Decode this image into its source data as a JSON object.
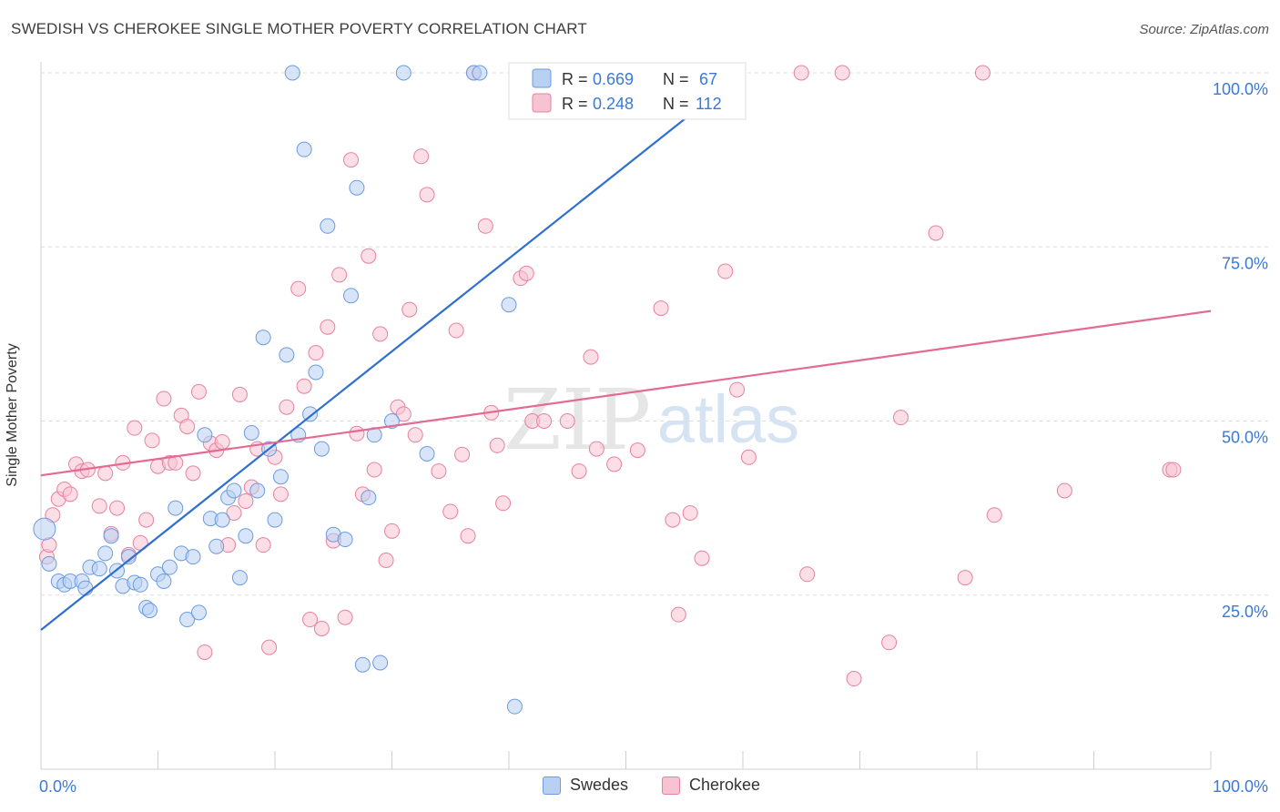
{
  "header": {
    "title": "SWEDISH VS CHEROKEE SINGLE MOTHER POVERTY CORRELATION CHART",
    "source": "Source: ZipAtlas.com"
  },
  "watermark": {
    "zip": "ZIP",
    "atlas": "atlas"
  },
  "chart_data": {
    "type": "scatter",
    "xlabel": "",
    "ylabel": "Single Mother Poverty",
    "xlim": [
      0,
      100
    ],
    "ylim": [
      0,
      100
    ],
    "x_tick_labels": [
      "0.0%",
      "100.0%"
    ],
    "y_ticks": [
      25,
      50,
      75,
      100
    ],
    "y_tick_labels": [
      "25.0%",
      "50.0%",
      "75.0%",
      "100.0%"
    ],
    "grid": true,
    "legend_placement": "top-center",
    "legend": [
      {
        "r_label": "R =",
        "r_value": "0.669",
        "n_label": "N =",
        "n_value": "67"
      },
      {
        "r_label": "R =",
        "r_value": "0.248",
        "n_label": "N =",
        "n_value": "112"
      }
    ],
    "series": [
      {
        "name": "Swedes",
        "color": "#6c9be0",
        "fill": "#b8d0f2",
        "trend": {
          "x": [
            0,
            60
          ],
          "y": [
            20,
            100
          ]
        },
        "points": [
          [
            0.3,
            34.5
          ],
          [
            0.7,
            29.5
          ],
          [
            1.5,
            27
          ],
          [
            2,
            26.5
          ],
          [
            2.5,
            27
          ],
          [
            3.5,
            27
          ],
          [
            3.8,
            26
          ],
          [
            4.2,
            29
          ],
          [
            5,
            28.8
          ],
          [
            5.5,
            31
          ],
          [
            6,
            33.5
          ],
          [
            6.5,
            28.5
          ],
          [
            7,
            26.3
          ],
          [
            7.5,
            30.5
          ],
          [
            8,
            26.8
          ],
          [
            8.5,
            26.5
          ],
          [
            9,
            23.2
          ],
          [
            9.3,
            22.8
          ],
          [
            10,
            28
          ],
          [
            10.5,
            27
          ],
          [
            11,
            29
          ],
          [
            11.5,
            37.5
          ],
          [
            12,
            31
          ],
          [
            12.5,
            21.5
          ],
          [
            13,
            30.5
          ],
          [
            13.5,
            22.5
          ],
          [
            14,
            48
          ],
          [
            14.5,
            36
          ],
          [
            15,
            32
          ],
          [
            15.5,
            35.8
          ],
          [
            16,
            39
          ],
          [
            16.5,
            40
          ],
          [
            17,
            27.5
          ],
          [
            17.5,
            33.5
          ],
          [
            18,
            48.3
          ],
          [
            18.5,
            40
          ],
          [
            19,
            62
          ],
          [
            19.5,
            46
          ],
          [
            20,
            35.8
          ],
          [
            20.5,
            42
          ],
          [
            21,
            59.5
          ],
          [
            21.5,
            100
          ],
          [
            22,
            48
          ],
          [
            22.5,
            89
          ],
          [
            23,
            51
          ],
          [
            23.5,
            57
          ],
          [
            24,
            46
          ],
          [
            24.5,
            78
          ],
          [
            25,
            33.7
          ],
          [
            26,
            33
          ],
          [
            26.5,
            68
          ],
          [
            27,
            83.5
          ],
          [
            27.5,
            15
          ],
          [
            28,
            39
          ],
          [
            28.5,
            48
          ],
          [
            29,
            15.3
          ],
          [
            30,
            50
          ],
          [
            31,
            100
          ],
          [
            33,
            45.3
          ],
          [
            37,
            100
          ],
          [
            37.5,
            100
          ],
          [
            40,
            66.7
          ],
          [
            40.5,
            9
          ]
        ]
      },
      {
        "name": "Cherokee",
        "color": "#e8819f",
        "fill": "#f7c2d1",
        "trend": {
          "x": [
            0,
            100
          ],
          "y": [
            42.2,
            65.8
          ]
        },
        "points": [
          [
            0.5,
            30.5
          ],
          [
            0.7,
            32.2
          ],
          [
            1,
            36.5
          ],
          [
            1.5,
            38.8
          ],
          [
            2,
            40.2
          ],
          [
            2.5,
            39.5
          ],
          [
            3,
            43.8
          ],
          [
            3.5,
            42.8
          ],
          [
            4,
            43
          ],
          [
            5,
            37.8
          ],
          [
            5.5,
            42.5
          ],
          [
            6,
            33.8
          ],
          [
            6.5,
            37.5
          ],
          [
            7,
            44
          ],
          [
            7.5,
            30.8
          ],
          [
            8,
            49
          ],
          [
            8.5,
            32.5
          ],
          [
            9,
            35.8
          ],
          [
            9.5,
            47.2
          ],
          [
            10,
            43.5
          ],
          [
            10.5,
            53.2
          ],
          [
            11,
            44
          ],
          [
            11.5,
            44
          ],
          [
            12,
            50.8
          ],
          [
            12.5,
            49.2
          ],
          [
            13,
            42.5
          ],
          [
            13.5,
            54.2
          ],
          [
            14,
            16.8
          ],
          [
            14.5,
            46.8
          ],
          [
            15,
            45.8
          ],
          [
            15.5,
            47
          ],
          [
            16,
            32.2
          ],
          [
            16.5,
            36.8
          ],
          [
            17,
            53.8
          ],
          [
            17.5,
            38.5
          ],
          [
            18,
            40.5
          ],
          [
            18.5,
            46
          ],
          [
            19,
            32.2
          ],
          [
            19.5,
            17.5
          ],
          [
            20,
            44.8
          ],
          [
            20.5,
            39.5
          ],
          [
            21,
            52
          ],
          [
            22,
            69
          ],
          [
            22.5,
            55
          ],
          [
            23,
            21.5
          ],
          [
            23.5,
            59.8
          ],
          [
            24,
            20.2
          ],
          [
            24.5,
            63.5
          ],
          [
            25,
            32.8
          ],
          [
            25.5,
            71
          ],
          [
            26,
            21.8
          ],
          [
            26.5,
            87.5
          ],
          [
            27,
            48.2
          ],
          [
            27.5,
            39.5
          ],
          [
            28,
            73.7
          ],
          [
            28.5,
            43
          ],
          [
            29,
            62.5
          ],
          [
            29.5,
            30
          ],
          [
            30,
            34.2
          ],
          [
            30.5,
            52
          ],
          [
            31,
            51
          ],
          [
            31.5,
            66
          ],
          [
            32,
            48
          ],
          [
            32.5,
            88
          ],
          [
            33,
            82.5
          ],
          [
            34,
            42.8
          ],
          [
            35,
            37
          ],
          [
            35.5,
            63
          ],
          [
            36,
            45.2
          ],
          [
            36.5,
            33.5
          ],
          [
            37,
            100
          ],
          [
            38,
            78
          ],
          [
            38.5,
            51.2
          ],
          [
            39,
            46.5
          ],
          [
            39.5,
            38.2
          ],
          [
            41,
            70.5
          ],
          [
            41.5,
            71.2
          ],
          [
            42,
            50
          ],
          [
            43,
            50
          ],
          [
            45,
            50
          ],
          [
            46,
            42.8
          ],
          [
            47,
            59.2
          ],
          [
            47.5,
            46
          ],
          [
            49,
            43.8
          ],
          [
            51,
            45.8
          ],
          [
            52.5,
            100
          ],
          [
            53,
            66.2
          ],
          [
            54,
            35.8
          ],
          [
            54.5,
            22.2
          ],
          [
            55.5,
            36.8
          ],
          [
            56.5,
            30.3
          ],
          [
            58.5,
            71.5
          ],
          [
            59.5,
            54.5
          ],
          [
            60.5,
            44.8
          ],
          [
            65,
            100
          ],
          [
            65.5,
            28
          ],
          [
            68.5,
            100
          ],
          [
            69.5,
            13
          ],
          [
            72.5,
            18.2
          ],
          [
            73.5,
            50.5
          ],
          [
            76.5,
            77
          ],
          [
            79,
            27.5
          ],
          [
            80.5,
            100
          ],
          [
            81.5,
            36.5
          ],
          [
            87.5,
            40
          ],
          [
            96.5,
            43
          ],
          [
            96.8,
            43
          ]
        ]
      }
    ]
  }
}
